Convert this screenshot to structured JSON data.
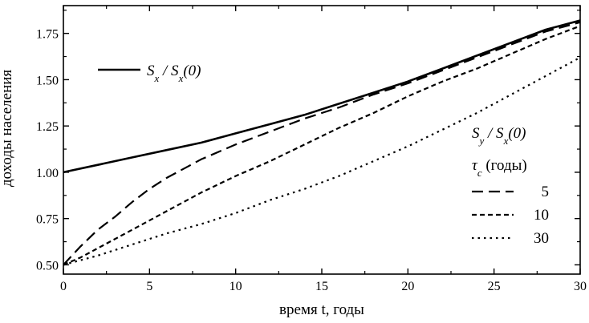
{
  "chart_data": {
    "type": "line",
    "xlabel": "время t, годы",
    "ylabel": "доходы населения",
    "xlim": [
      0,
      30
    ],
    "ylim": [
      0.45,
      1.9
    ],
    "xticks": [
      0,
      5,
      10,
      15,
      20,
      25,
      30
    ],
    "yticks": [
      0.5,
      0.75,
      1.0,
      1.25,
      1.5,
      1.75
    ],
    "xtick_labels": [
      "0",
      "5",
      "10",
      "15",
      "20",
      "25",
      "30"
    ],
    "ytick_labels": [
      "0.50",
      "0.75",
      "1.00",
      "1.25",
      "1.50",
      "1.75"
    ],
    "grid": false,
    "legend_main": {
      "label": "S_x / S_x(0)",
      "placement": "upper-left"
    },
    "legend_group": {
      "title": "S_y / S_x(0)",
      "subtitle": "τ_c (годы)",
      "placement": "lower-right",
      "entries": [
        "5",
        "10",
        "30"
      ]
    },
    "series": [
      {
        "name": "S_x / S_x(0)",
        "style": "solid",
        "x": [
          0,
          2,
          4,
          6,
          8,
          10,
          12,
          14,
          16,
          18,
          20,
          22,
          24,
          26,
          28,
          30
        ],
        "y": [
          1.0,
          1.04,
          1.08,
          1.12,
          1.16,
          1.21,
          1.26,
          1.31,
          1.37,
          1.43,
          1.49,
          1.56,
          1.63,
          1.7,
          1.77,
          1.82
        ]
      },
      {
        "name": "5",
        "style": "long-dash",
        "x": [
          0,
          1,
          2,
          3,
          4,
          5,
          6,
          8,
          10,
          12,
          14,
          16,
          18,
          20,
          22,
          24,
          26,
          28,
          30
        ],
        "y": [
          0.5,
          0.6,
          0.69,
          0.76,
          0.84,
          0.91,
          0.97,
          1.07,
          1.15,
          1.22,
          1.29,
          1.35,
          1.42,
          1.48,
          1.55,
          1.62,
          1.69,
          1.76,
          1.81
        ]
      },
      {
        "name": "10",
        "style": "short-dash",
        "x": [
          0,
          1,
          2,
          4,
          6,
          8,
          10,
          12,
          14,
          16,
          18,
          20,
          22,
          24,
          26,
          28,
          30
        ],
        "y": [
          0.5,
          0.54,
          0.59,
          0.69,
          0.79,
          0.89,
          0.98,
          1.06,
          1.15,
          1.24,
          1.32,
          1.41,
          1.49,
          1.56,
          1.64,
          1.72,
          1.79
        ]
      },
      {
        "name": "30",
        "style": "dotted",
        "x": [
          0,
          2,
          4,
          6,
          8,
          10,
          12,
          14,
          16,
          18,
          20,
          22,
          24,
          26,
          28,
          30
        ],
        "y": [
          0.5,
          0.55,
          0.61,
          0.67,
          0.72,
          0.78,
          0.85,
          0.91,
          0.98,
          1.06,
          1.14,
          1.23,
          1.32,
          1.42,
          1.52,
          1.62
        ]
      }
    ]
  }
}
